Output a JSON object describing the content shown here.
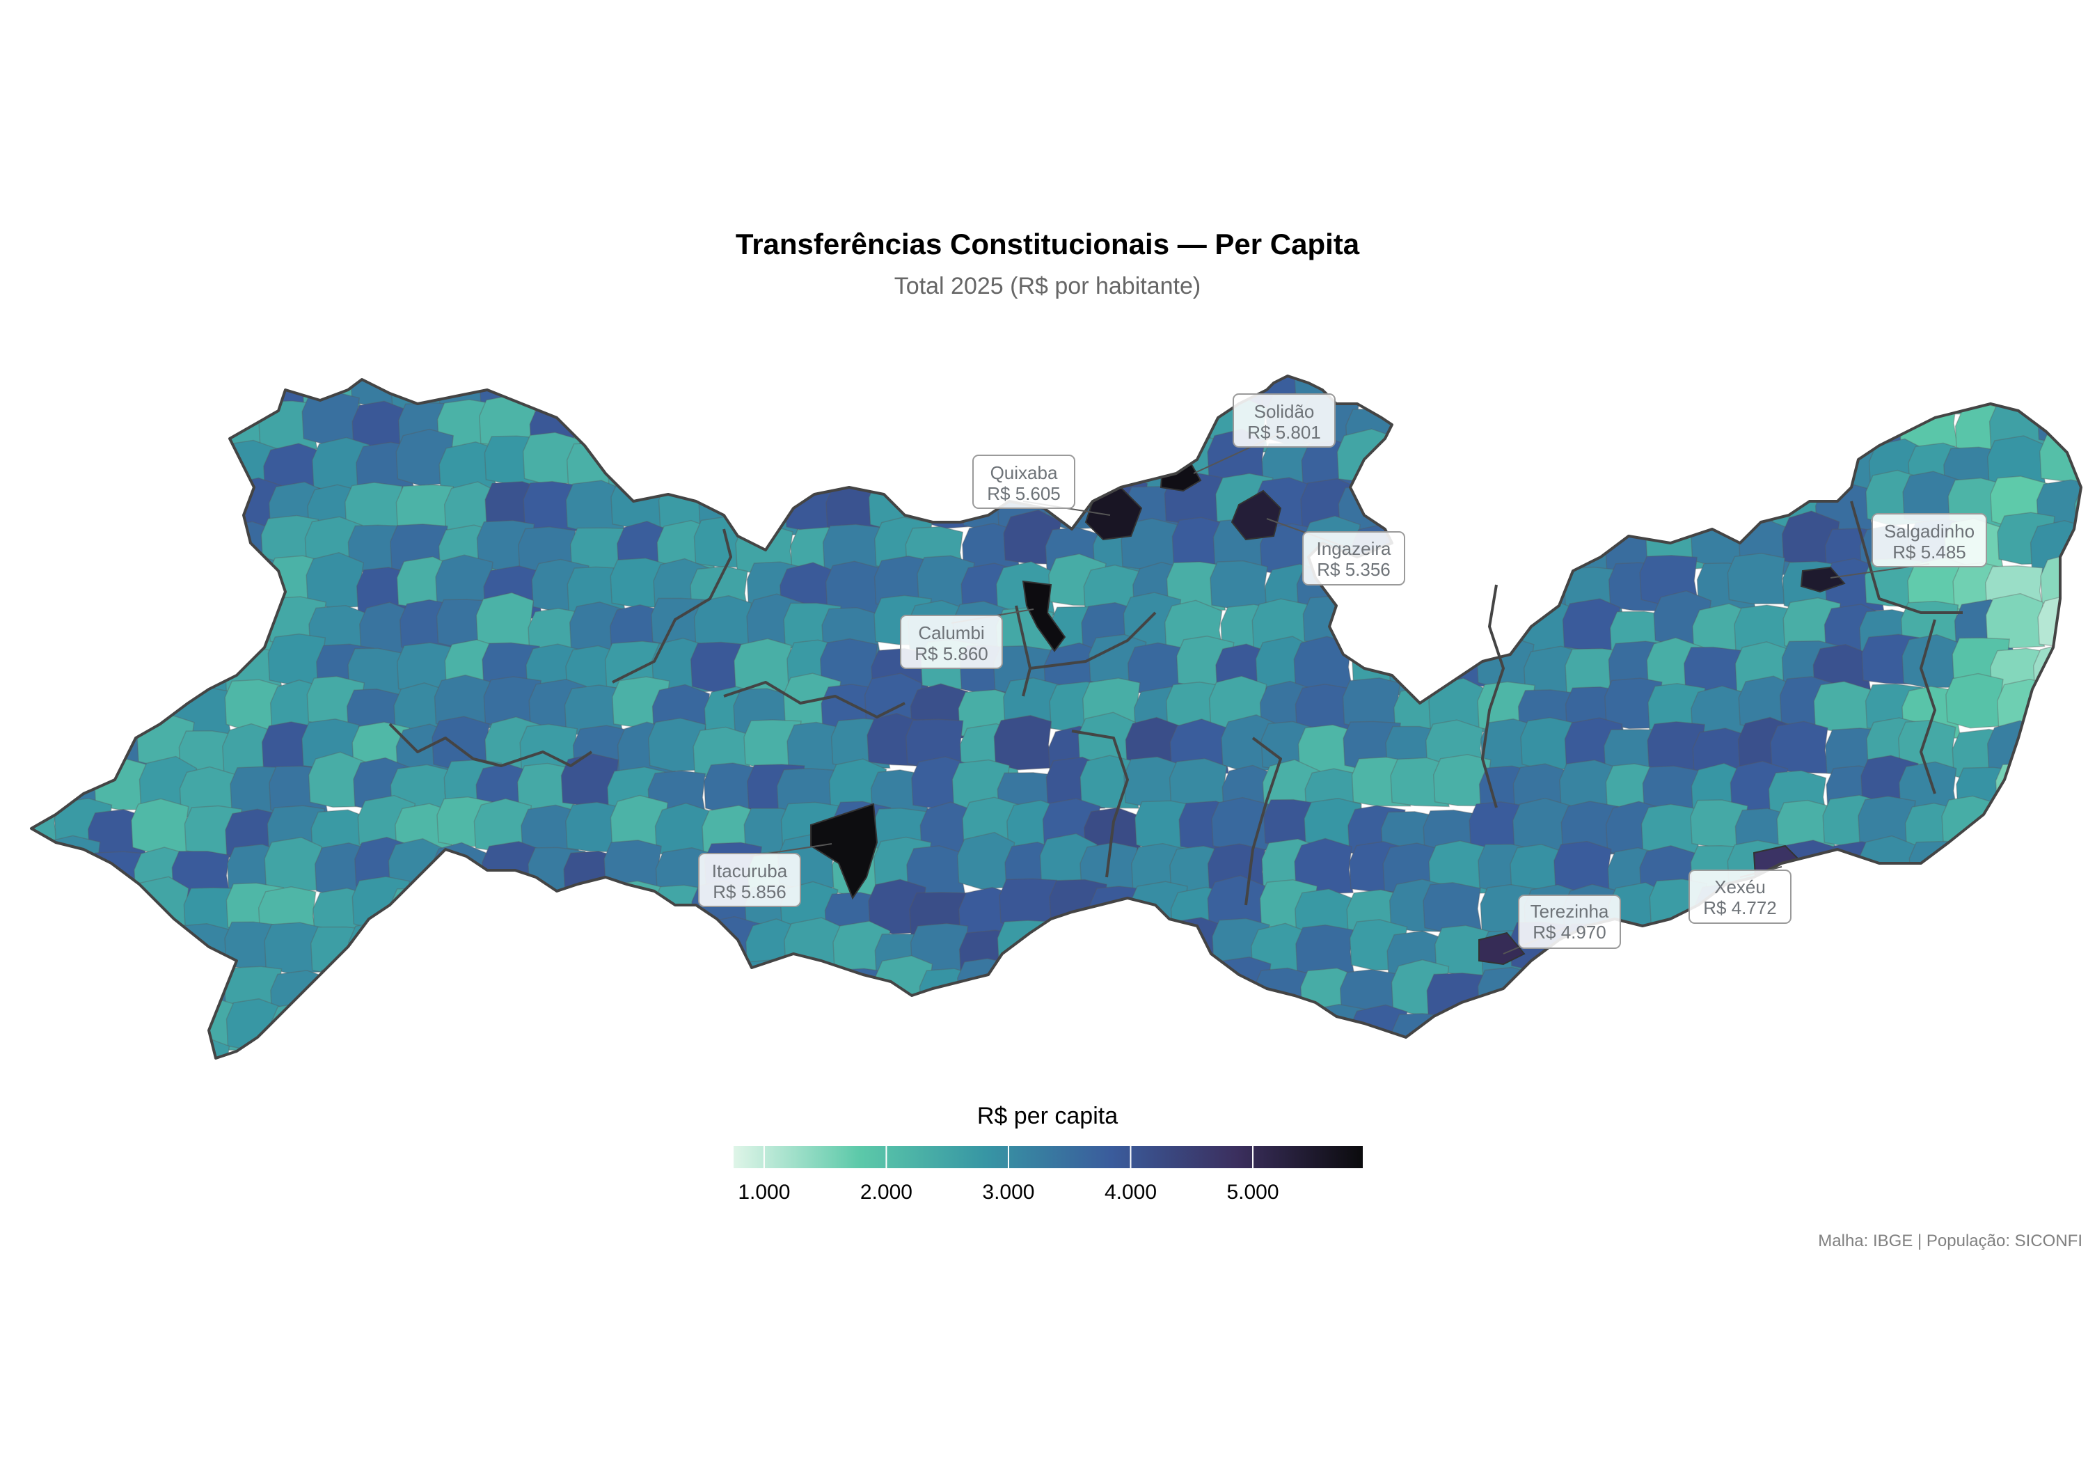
{
  "chart_data": {
    "type": "choropleth",
    "title": "Transferências Constitucionais — Per Capita",
    "subtitle": "Total 2025 (R$ por habitante)",
    "caption": "Malha: IBGE | População: SICONFI",
    "legend": {
      "title": "R$ per capita",
      "min": 750,
      "max": 5900,
      "ticks": [
        {
          "value": 1000,
          "label": "1.000"
        },
        {
          "value": 2000,
          "label": "2.000"
        },
        {
          "value": 3000,
          "label": "3.000"
        },
        {
          "value": 4000,
          "label": "4.000"
        },
        {
          "value": 5000,
          "label": "5.000"
        }
      ],
      "colors": [
        "#dff5e8",
        "#5cc9a9",
        "#3796a4",
        "#3a5c9c",
        "#3b2f5e",
        "#0b0b0d"
      ],
      "placement": "bottom-center"
    },
    "callouts": [
      {
        "name": "Solidão",
        "value_label": "R$ 5.801",
        "value": 5801
      },
      {
        "name": "Quixaba",
        "value_label": "R$ 5.605",
        "value": 5605
      },
      {
        "name": "Ingazeira",
        "value_label": "R$ 5.356",
        "value": 5356
      },
      {
        "name": "Calumbi",
        "value_label": "R$ 5.860",
        "value": 5860
      },
      {
        "name": "Salgadinho",
        "value_label": "R$ 5.485",
        "value": 5485
      },
      {
        "name": "Itacuruba",
        "value_label": "R$ 5.856",
        "value": 5856
      },
      {
        "name": "Terezinha",
        "value_label": "R$ 4.970",
        "value": 4970
      },
      {
        "name": "Xexéu",
        "value_label": "R$ 4.772",
        "value": 4772
      }
    ]
  }
}
